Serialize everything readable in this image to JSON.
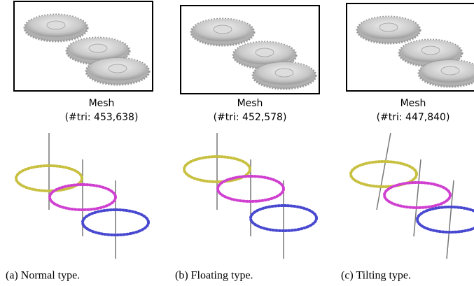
{
  "panels": [
    {
      "mesh_label": "Mesh",
      "tri_label": "(#tri: 453,638)",
      "caption": "(a) Normal type."
    },
    {
      "mesh_label": "Mesh",
      "tri_label": "(#tri: 452,578)",
      "caption": "(b) Floating type."
    },
    {
      "mesh_label": "Mesh",
      "tri_label": "(#tri: 447,840)",
      "caption": "(c) Tilting type."
    }
  ]
}
